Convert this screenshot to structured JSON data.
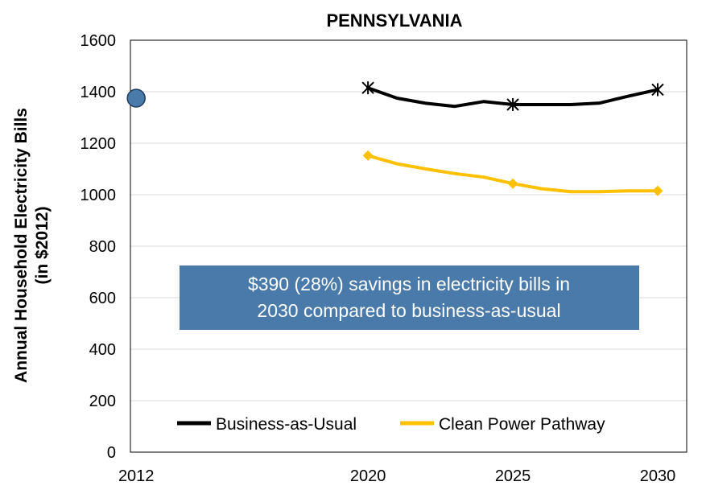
{
  "chart_data": {
    "type": "line",
    "title": "PENNSYLVANIA",
    "ylabel_line1": "Annual Household Electricity Bills",
    "ylabel_line2": "(in $2012)",
    "xlabel": "",
    "ylim": [
      0,
      1600
    ],
    "xlim": [
      2011.8,
      2031
    ],
    "grid": true,
    "yticks": [
      0,
      200,
      400,
      600,
      800,
      1000,
      1200,
      1400,
      1600
    ],
    "xticks": [
      2012,
      2020,
      2025,
      2030
    ],
    "legend_position": "bottom",
    "historical_point": {
      "x": 2012,
      "y": 1375,
      "color": "#4a7aaa"
    },
    "series": [
      {
        "name": "Business-as-Usual",
        "color": "#000000",
        "x": [
          2020,
          2021,
          2022,
          2023,
          2024,
          2025,
          2026,
          2027,
          2028,
          2029,
          2030
        ],
        "y": [
          1415,
          1375,
          1355,
          1343,
          1362,
          1350,
          1350,
          1350,
          1356,
          1383,
          1408
        ],
        "marker": "asterisk",
        "marker_x": [
          2020,
          2025,
          2030
        ]
      },
      {
        "name": "Clean Power Pathway",
        "color": "#ffc000",
        "x": [
          2020,
          2021,
          2022,
          2023,
          2024,
          2025,
          2026,
          2027,
          2028,
          2029,
          2030
        ],
        "y": [
          1152,
          1120,
          1100,
          1082,
          1068,
          1043,
          1023,
          1012,
          1012,
          1015,
          1015
        ],
        "marker": "diamond",
        "marker_x": [
          2020,
          2025,
          2030
        ]
      }
    ],
    "annotation": {
      "line1": "$390 (28%) savings in electricity bills in",
      "line2": "2030 compared to business-as-usual",
      "background": "#4a7aaa"
    }
  }
}
